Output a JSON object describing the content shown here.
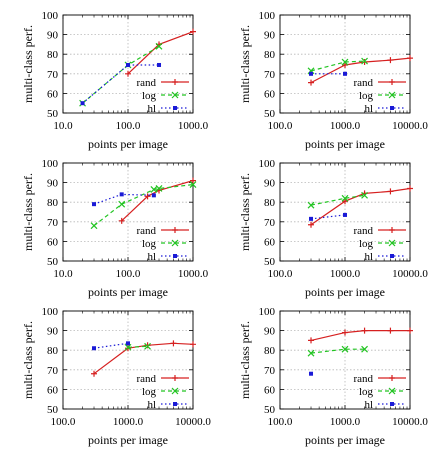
{
  "chart_data": [
    {
      "type": "line",
      "xscale": "log",
      "xlim": [
        10,
        1000
      ],
      "ylim": [
        50,
        100
      ],
      "xticks": [
        "10.0",
        "100.0",
        "1000.0"
      ],
      "yticks": [
        "50",
        "60",
        "70",
        "80",
        "90",
        "100"
      ],
      "xlabel": "points per image",
      "ylabel": "multi-class perf.",
      "grid": true,
      "legend": "lower-right",
      "series": [
        {
          "name": "rand",
          "color": "#d62020",
          "style": "solid",
          "marker": "plus",
          "points": [
            [
              100,
              70
            ],
            [
              300,
              85
            ],
            [
              1000,
              91.5
            ]
          ]
        },
        {
          "name": "log",
          "color": "#22c422",
          "style": "dashed",
          "marker": "x",
          "points": [
            [
              20,
              55
            ],
            [
              100,
              74.5
            ],
            [
              300,
              84
            ]
          ]
        },
        {
          "name": "hl",
          "color": "#1a1ad6",
          "style": "dotted",
          "marker": "square",
          "points": [
            [
              20,
              55
            ],
            [
              100,
              74.5
            ],
            [
              300,
              74.5
            ]
          ]
        }
      ]
    },
    {
      "type": "line",
      "xscale": "log",
      "xlim": [
        100,
        10000
      ],
      "ylim": [
        50,
        100
      ],
      "xticks": [
        "100.0",
        "1000.0",
        "10000.0"
      ],
      "yticks": [
        "50",
        "60",
        "70",
        "80",
        "90",
        "100"
      ],
      "xlabel": "points per image",
      "ylabel": "multi-class perf.",
      "grid": true,
      "legend": "lower-right",
      "series": [
        {
          "name": "rand",
          "color": "#d62020",
          "style": "solid",
          "marker": "plus",
          "points": [
            [
              300,
              65.5
            ],
            [
              1000,
              74.5
            ],
            [
              2000,
              76
            ],
            [
              5000,
              77
            ],
            [
              10000,
              78
            ]
          ]
        },
        {
          "name": "log",
          "color": "#22c422",
          "style": "dashed",
          "marker": "x",
          "points": [
            [
              300,
              71.5
            ],
            [
              1000,
              76
            ],
            [
              2000,
              76.5
            ]
          ]
        },
        {
          "name": "hl",
          "color": "#1a1ad6",
          "style": "dotted",
          "marker": "square",
          "points": [
            [
              300,
              70
            ],
            [
              1000,
              70
            ]
          ]
        }
      ]
    },
    {
      "type": "line",
      "xscale": "log",
      "xlim": [
        10,
        1000
      ],
      "ylim": [
        50,
        100
      ],
      "xticks": [
        "10.0",
        "100.0",
        "1000.0"
      ],
      "yticks": [
        "50",
        "60",
        "70",
        "80",
        "90",
        "100"
      ],
      "xlabel": "points per image",
      "ylabel": "multi-class perf.",
      "grid": true,
      "legend": "lower-right",
      "series": [
        {
          "name": "rand",
          "color": "#d62020",
          "style": "solid",
          "marker": "plus",
          "points": [
            [
              80,
              70.5
            ],
            [
              200,
              83
            ],
            [
              300,
              86
            ],
            [
              1000,
              91
            ]
          ]
        },
        {
          "name": "log",
          "color": "#22c422",
          "style": "dashed",
          "marker": "x",
          "points": [
            [
              30,
              68
            ],
            [
              80,
              79
            ],
            [
              250,
              86.5
            ],
            [
              300,
              87
            ],
            [
              1000,
              89
            ]
          ]
        },
        {
          "name": "hl",
          "color": "#1a1ad6",
          "style": "dotted",
          "marker": "square",
          "points": [
            [
              30,
              79
            ],
            [
              80,
              84
            ],
            [
              250,
              83.5
            ]
          ]
        }
      ]
    },
    {
      "type": "line",
      "xscale": "log",
      "xlim": [
        100,
        10000
      ],
      "ylim": [
        50,
        100
      ],
      "xticks": [
        "100.0",
        "1000.0",
        "10000.0"
      ],
      "yticks": [
        "50",
        "60",
        "70",
        "80",
        "90",
        "100"
      ],
      "xlabel": "points per image",
      "ylabel": "multi-class perf.",
      "grid": true,
      "legend": "lower-right",
      "series": [
        {
          "name": "rand",
          "color": "#d62020",
          "style": "solid",
          "marker": "plus",
          "points": [
            [
              300,
              68.5
            ],
            [
              1000,
              80.5
            ],
            [
              2000,
              84.5
            ],
            [
              5000,
              85.5
            ],
            [
              10000,
              87
            ]
          ]
        },
        {
          "name": "log",
          "color": "#22c422",
          "style": "dashed",
          "marker": "x",
          "points": [
            [
              300,
              78.5
            ],
            [
              1000,
              82
            ],
            [
              2000,
              83.5
            ]
          ]
        },
        {
          "name": "hl",
          "color": "#1a1ad6",
          "style": "dotted",
          "marker": "square",
          "points": [
            [
              300,
              71.5
            ],
            [
              1000,
              73.5
            ]
          ]
        }
      ]
    },
    {
      "type": "line",
      "xscale": "log",
      "xlim": [
        100,
        10000
      ],
      "ylim": [
        50,
        100
      ],
      "xticks": [
        "100.0",
        "1000.0",
        "10000.0"
      ],
      "yticks": [
        "50",
        "60",
        "70",
        "80",
        "90",
        "100"
      ],
      "xlabel": "points per image",
      "ylabel": "multi-class perf.",
      "grid": true,
      "legend": "lower-right",
      "series": [
        {
          "name": "rand",
          "color": "#d62020",
          "style": "solid",
          "marker": "plus",
          "points": [
            [
              300,
              68
            ],
            [
              1000,
              81
            ],
            [
              2000,
              82.5
            ],
            [
              5000,
              83.5
            ],
            [
              10000,
              83
            ]
          ]
        },
        {
          "name": "log",
          "color": "#22c422",
          "style": "dashed",
          "marker": "x",
          "points": [
            [
              1000,
              81.5
            ],
            [
              2000,
              82
            ]
          ]
        },
        {
          "name": "hl",
          "color": "#1a1ad6",
          "style": "dotted",
          "marker": "square",
          "points": [
            [
              300,
              81
            ],
            [
              1000,
              83.5
            ]
          ]
        }
      ]
    },
    {
      "type": "line",
      "xscale": "log",
      "xlim": [
        100,
        10000
      ],
      "ylim": [
        50,
        100
      ],
      "xticks": [
        "100.0",
        "1000.0",
        "10000.0"
      ],
      "yticks": [
        "50",
        "60",
        "70",
        "80",
        "90",
        "100"
      ],
      "xlabel": "points per image",
      "ylabel": "multi-class perf.",
      "grid": true,
      "legend": "lower-right",
      "series": [
        {
          "name": "rand",
          "color": "#d62020",
          "style": "solid",
          "marker": "plus",
          "points": [
            [
              300,
              85
            ],
            [
              1000,
              89
            ],
            [
              2000,
              90
            ],
            [
              5000,
              90
            ],
            [
              10000,
              90
            ]
          ]
        },
        {
          "name": "log",
          "color": "#22c422",
          "style": "dashed",
          "marker": "x",
          "points": [
            [
              300,
              78.5
            ],
            [
              1000,
              80.5
            ],
            [
              2000,
              80.5
            ]
          ]
        },
        {
          "name": "hl",
          "color": "#1a1ad6",
          "style": "dotted",
          "marker": "square",
          "points": [
            [
              300,
              68
            ]
          ]
        }
      ]
    }
  ]
}
